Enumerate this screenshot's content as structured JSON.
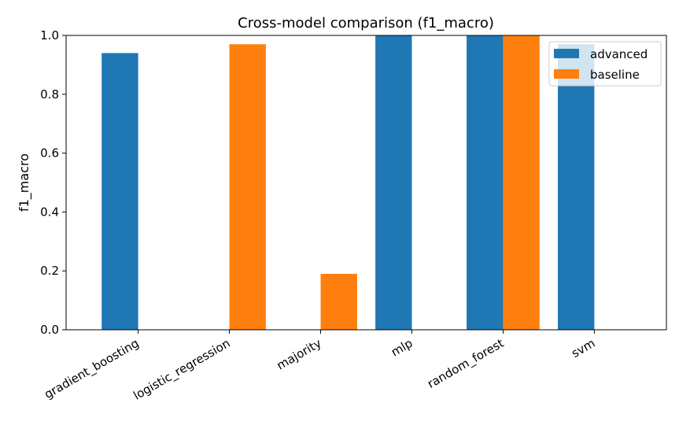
{
  "chart_data": {
    "type": "bar",
    "title": "Cross-model comparison (f1_macro)",
    "xlabel": "",
    "ylabel": "f1_macro",
    "ylim": [
      0,
      1.0
    ],
    "yticks": [
      "0.0",
      "0.2",
      "0.4",
      "0.6",
      "0.8",
      "1.0"
    ],
    "categories": [
      "gradient_boosting",
      "logistic_regression",
      "majority",
      "mlp",
      "random_forest",
      "svm"
    ],
    "series": [
      {
        "name": "advanced",
        "color": "#1f77b4",
        "values": [
          0.94,
          null,
          null,
          1.0,
          1.0,
          0.97
        ]
      },
      {
        "name": "baseline",
        "color": "#ff7f0e",
        "values": [
          null,
          0.97,
          0.19,
          null,
          1.0,
          null
        ]
      }
    ],
    "legend_position": "top-right",
    "grid": false
  }
}
